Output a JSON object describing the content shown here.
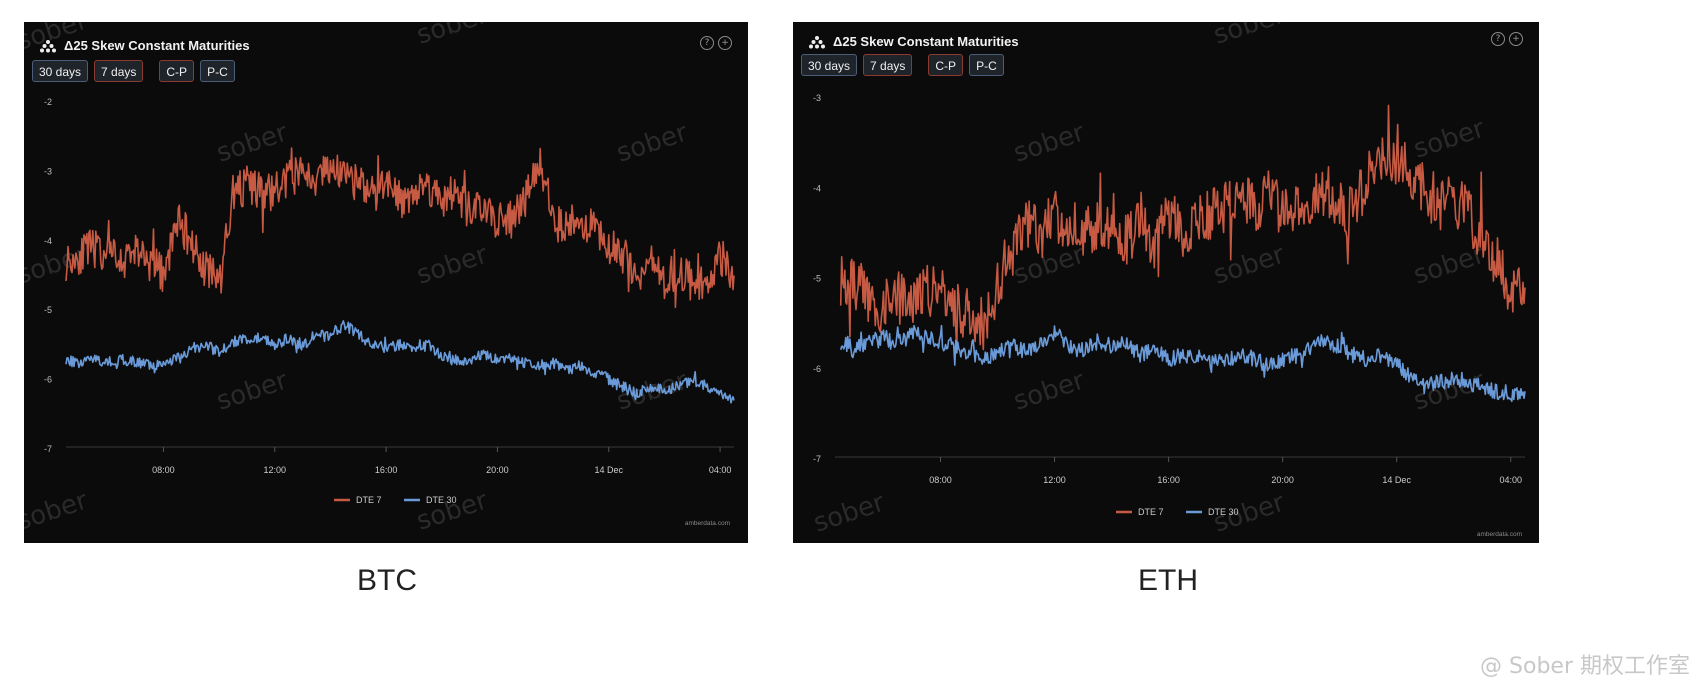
{
  "panels": [
    {
      "id": "btc",
      "title": "Δ25 Skew Constant Maturities",
      "buttons": [
        "30 days",
        "7 days",
        "C-P",
        "P-C"
      ],
      "source": "amberdata.com",
      "caption": "BTC",
      "watermark": "sober"
    },
    {
      "id": "eth",
      "title": "Δ25 Skew Constant Maturities",
      "buttons": [
        "30 days",
        "7 days",
        "C-P",
        "P-C"
      ],
      "source": "amberdata.com",
      "caption": "ETH",
      "watermark": "sober"
    }
  ],
  "footer_text": "@ Sober 期权工作室",
  "colors": {
    "dte7": "#c65a42",
    "dte30": "#6a9bd8",
    "background": "#0b0b0c",
    "axis": "#333333"
  },
  "chart_data": [
    {
      "type": "line",
      "title": "Δ25 Skew Constant Maturities",
      "subtitle": "BTC",
      "x_ticks": [
        "08:00",
        "12:00",
        "16:00",
        "20:00",
        "14 Dec",
        "04:00"
      ],
      "x_tick_hours": [
        8,
        12,
        16,
        20,
        24,
        28
      ],
      "x_range_hours": [
        4.5,
        28.5
      ],
      "yticks": [
        -2,
        -3,
        -4,
        -5,
        -6,
        -7
      ],
      "ylim": [
        -7,
        -2
      ],
      "legend": [
        "DTE 7",
        "DTE 30"
      ],
      "legend_position": "bottom-center",
      "series": [
        {
          "name": "DTE 7",
          "color": "#c65a42",
          "x_hours": [
            4.5,
            5.0,
            5.5,
            6.0,
            6.5,
            7.0,
            7.5,
            8.0,
            8.5,
            9.0,
            9.5,
            10.0,
            10.5,
            11.0,
            11.5,
            12.0,
            12.5,
            13.0,
            13.5,
            14.0,
            14.5,
            15.0,
            15.5,
            16.0,
            16.5,
            17.0,
            17.5,
            18.0,
            18.5,
            19.0,
            19.5,
            20.0,
            20.5,
            21.0,
            21.5,
            22.0,
            22.5,
            23.0,
            23.5,
            24.0,
            24.5,
            25.0,
            25.5,
            26.0,
            26.5,
            27.0,
            27.5,
            28.0,
            28.5
          ],
          "values": [
            -4.3,
            -4.2,
            -4.1,
            -4.2,
            -4.3,
            -4.1,
            -4.3,
            -4.5,
            -3.7,
            -4.0,
            -4.4,
            -4.6,
            -3.3,
            -3.2,
            -3.3,
            -3.3,
            -3.1,
            -3.0,
            -3.1,
            -2.9,
            -3.1,
            -3.2,
            -3.3,
            -3.1,
            -3.4,
            -3.3,
            -3.2,
            -3.4,
            -3.3,
            -3.6,
            -3.5,
            -3.7,
            -3.7,
            -3.4,
            -2.8,
            -3.7,
            -3.8,
            -3.7,
            -3.8,
            -4.1,
            -4.2,
            -4.5,
            -4.3,
            -4.6,
            -4.4,
            -4.6,
            -4.7,
            -4.2,
            -4.5
          ]
        },
        {
          "name": "DTE 30",
          "color": "#6a9bd8",
          "x_hours": [
            4.5,
            5.0,
            5.5,
            6.0,
            6.5,
            7.0,
            7.5,
            8.0,
            8.5,
            9.0,
            9.5,
            10.0,
            10.5,
            11.0,
            11.5,
            12.0,
            12.5,
            13.0,
            13.5,
            14.0,
            14.5,
            15.0,
            15.5,
            16.0,
            16.5,
            17.0,
            17.5,
            18.0,
            18.5,
            19.0,
            19.5,
            20.0,
            20.5,
            21.0,
            21.5,
            22.0,
            22.5,
            23.0,
            23.5,
            24.0,
            24.5,
            25.0,
            25.5,
            26.0,
            26.5,
            27.0,
            27.5,
            28.0,
            28.5
          ],
          "values": [
            -5.7,
            -5.8,
            -5.7,
            -5.75,
            -5.7,
            -5.75,
            -5.8,
            -5.75,
            -5.7,
            -5.55,
            -5.5,
            -5.6,
            -5.45,
            -5.4,
            -5.4,
            -5.5,
            -5.4,
            -5.5,
            -5.35,
            -5.4,
            -5.2,
            -5.35,
            -5.5,
            -5.55,
            -5.5,
            -5.6,
            -5.5,
            -5.65,
            -5.75,
            -5.7,
            -5.65,
            -5.7,
            -5.7,
            -5.75,
            -5.8,
            -5.75,
            -5.85,
            -5.8,
            -5.9,
            -6.0,
            -6.1,
            -6.2,
            -6.1,
            -6.15,
            -6.1,
            -6.0,
            -6.1,
            -6.2,
            -6.3
          ]
        }
      ]
    },
    {
      "type": "line",
      "title": "Δ25 Skew Constant Maturities",
      "subtitle": "ETH",
      "x_ticks": [
        "08:00",
        "12:00",
        "16:00",
        "20:00",
        "14 Dec",
        "04:00"
      ],
      "x_tick_hours": [
        8,
        12,
        16,
        20,
        24,
        28
      ],
      "x_range_hours": [
        4.3,
        28.5
      ],
      "yticks": [
        -3,
        -4,
        -5,
        -6,
        -7
      ],
      "ylim": [
        -7,
        -3
      ],
      "legend": [
        "DTE 7",
        "DTE 30"
      ],
      "legend_position": "bottom-center",
      "series": [
        {
          "name": "DTE 7",
          "color": "#c65a42",
          "x_hours": [
            4.5,
            5.0,
            5.5,
            6.0,
            6.5,
            7.0,
            7.5,
            8.0,
            8.5,
            9.0,
            9.5,
            10.0,
            10.5,
            11.0,
            11.5,
            12.0,
            12.5,
            13.0,
            13.5,
            14.0,
            14.5,
            15.0,
            15.5,
            16.0,
            16.5,
            17.0,
            17.5,
            18.0,
            18.5,
            19.0,
            19.5,
            20.0,
            20.5,
            21.0,
            21.5,
            22.0,
            22.5,
            23.0,
            23.5,
            24.0,
            24.5,
            25.0,
            25.5,
            26.0,
            26.5,
            27.0,
            27.5,
            28.0,
            28.5
          ],
          "values": [
            -5.0,
            -5.1,
            -5.2,
            -5.3,
            -5.2,
            -5.3,
            -5.1,
            -5.2,
            -5.3,
            -5.4,
            -5.5,
            -5.1,
            -4.6,
            -4.4,
            -4.5,
            -4.3,
            -4.4,
            -4.5,
            -4.4,
            -4.3,
            -4.6,
            -4.4,
            -4.6,
            -4.3,
            -4.5,
            -4.4,
            -4.3,
            -4.2,
            -4.1,
            -4.2,
            -4.1,
            -4.2,
            -4.2,
            -4.1,
            -4.0,
            -4.2,
            -4.3,
            -3.8,
            -3.7,
            -3.6,
            -3.9,
            -4.0,
            -4.2,
            -4.1,
            -4.3,
            -4.5,
            -4.8,
            -5.2,
            -5.1
          ]
        },
        {
          "name": "DTE 30",
          "color": "#6a9bd8",
          "x_hours": [
            4.5,
            5.0,
            5.5,
            6.0,
            6.5,
            7.0,
            7.5,
            8.0,
            8.5,
            9.0,
            9.5,
            10.0,
            10.5,
            11.0,
            11.5,
            12.0,
            12.5,
            13.0,
            13.5,
            14.0,
            14.5,
            15.0,
            15.5,
            16.0,
            16.5,
            17.0,
            17.5,
            18.0,
            18.5,
            19.0,
            19.5,
            20.0,
            20.5,
            21.0,
            21.5,
            22.0,
            22.5,
            23.0,
            23.5,
            24.0,
            24.5,
            25.0,
            25.5,
            26.0,
            26.5,
            27.0,
            27.5,
            28.0,
            28.5
          ],
          "values": [
            -5.7,
            -5.75,
            -5.7,
            -5.65,
            -5.7,
            -5.6,
            -5.65,
            -5.7,
            -5.75,
            -5.85,
            -5.9,
            -5.8,
            -5.75,
            -5.8,
            -5.7,
            -5.6,
            -5.75,
            -5.8,
            -5.7,
            -5.75,
            -5.7,
            -5.85,
            -5.8,
            -5.9,
            -5.85,
            -5.9,
            -5.95,
            -5.9,
            -5.85,
            -5.9,
            -5.95,
            -5.9,
            -5.85,
            -5.75,
            -5.7,
            -5.75,
            -5.85,
            -5.9,
            -5.85,
            -5.95,
            -6.1,
            -6.2,
            -6.15,
            -6.1,
            -6.15,
            -6.2,
            -6.25,
            -6.3,
            -6.25
          ]
        }
      ]
    }
  ]
}
